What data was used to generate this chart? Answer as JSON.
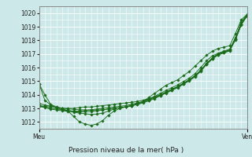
{
  "title": "Pression niveau de la mer( hPa )",
  "xlabel_left": "Meu",
  "xlabel_right": "Ven",
  "ylim": [
    1011.5,
    1020.5
  ],
  "yticks": [
    1012,
    1013,
    1014,
    1015,
    1016,
    1017,
    1018,
    1019,
    1020
  ],
  "bg_color": "#cde8e8",
  "grid_color": "#ffffff",
  "line_color": "#1a6b1a",
  "marker_color": "#1a6b1a",
  "series": [
    [
      1014.8,
      1014.0,
      1013.3,
      1013.1,
      1013.0,
      1012.8,
      1012.4,
      1012.0,
      1011.85,
      1011.75,
      1011.85,
      1012.1,
      1012.5,
      1012.8,
      1013.0,
      1013.1,
      1013.2,
      1013.3,
      1013.5,
      1013.8,
      1014.1,
      1014.4,
      1014.7,
      1014.9,
      1015.1,
      1015.4,
      1015.7,
      1016.1,
      1016.5,
      1016.9,
      1017.2,
      1017.4,
      1017.5,
      1017.6,
      1018.5,
      1019.5,
      1019.9
    ],
    [
      1013.2,
      1013.15,
      1013.1,
      1013.05,
      1013.0,
      1013.0,
      1013.0,
      1013.05,
      1013.1,
      1013.1,
      1013.15,
      1013.2,
      1013.25,
      1013.3,
      1013.35,
      1013.4,
      1013.45,
      1013.5,
      1013.6,
      1013.7,
      1013.85,
      1014.0,
      1014.2,
      1014.4,
      1014.6,
      1014.85,
      1015.1,
      1015.4,
      1015.8,
      1016.3,
      1016.7,
      1017.0,
      1017.15,
      1017.3,
      1018.1,
      1019.2,
      1019.85
    ],
    [
      1013.2,
      1013.1,
      1013.0,
      1012.95,
      1012.9,
      1012.85,
      1012.8,
      1012.8,
      1012.85,
      1012.9,
      1012.95,
      1013.0,
      1013.05,
      1013.1,
      1013.15,
      1013.2,
      1013.3,
      1013.4,
      1013.5,
      1013.65,
      1013.8,
      1014.0,
      1014.2,
      1014.4,
      1014.6,
      1014.85,
      1015.1,
      1015.4,
      1015.8,
      1016.3,
      1016.7,
      1017.0,
      1017.15,
      1017.3,
      1018.1,
      1019.2,
      1019.85
    ],
    [
      1013.15,
      1013.05,
      1012.95,
      1012.88,
      1012.82,
      1012.78,
      1012.75,
      1012.73,
      1012.75,
      1012.78,
      1012.82,
      1012.88,
      1012.95,
      1013.0,
      1013.05,
      1013.1,
      1013.2,
      1013.32,
      1013.45,
      1013.6,
      1013.75,
      1013.95,
      1014.15,
      1014.35,
      1014.55,
      1014.8,
      1015.05,
      1015.35,
      1015.75,
      1016.25,
      1016.65,
      1016.95,
      1017.1,
      1017.25,
      1018.05,
      1019.15,
      1019.8
    ],
    [
      1013.35,
      1013.25,
      1013.15,
      1013.08,
      1013.02,
      1012.97,
      1012.93,
      1012.9,
      1012.88,
      1012.87,
      1012.88,
      1012.9,
      1012.95,
      1013.0,
      1013.05,
      1013.1,
      1013.18,
      1013.28,
      1013.4,
      1013.55,
      1013.72,
      1013.92,
      1014.12,
      1014.32,
      1014.52,
      1014.77,
      1015.02,
      1015.32,
      1015.72,
      1016.22,
      1016.62,
      1016.92,
      1017.07,
      1017.22,
      1018.02,
      1019.12,
      1019.77
    ],
    [
      1014.8,
      1013.6,
      1013.25,
      1013.05,
      1012.9,
      1012.8,
      1012.72,
      1012.65,
      1012.6,
      1012.55,
      1012.58,
      1012.65,
      1012.8,
      1012.95,
      1013.05,
      1013.12,
      1013.22,
      1013.35,
      1013.5,
      1013.68,
      1013.88,
      1014.1,
      1014.32,
      1014.52,
      1014.72,
      1014.97,
      1015.22,
      1015.55,
      1016.0,
      1016.5,
      1016.85,
      1017.05,
      1017.2,
      1017.35,
      1018.2,
      1019.35,
      1019.85
    ]
  ]
}
